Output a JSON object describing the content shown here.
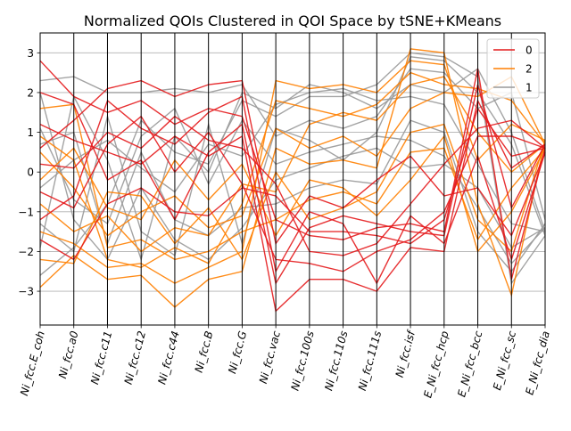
{
  "chart_data": {
    "type": "parallel-coordinates",
    "title": "Normalized QOIs Clustered in QOI Space by tSNE+KMeans",
    "axes": [
      "Ni_fcc.E_coh",
      "Ni_fcc.a0",
      "Ni_fcc.c11",
      "Ni_fcc.c12",
      "Ni_fcc.c44",
      "Ni_fcc.B",
      "Ni_fcc.G",
      "Ni_fcc.vac",
      "Ni_fcc.100s",
      "Ni_fcc.110s",
      "Ni_fcc.111s",
      "Ni_fcc.isf",
      "E_Ni_fcc_hcp",
      "E_Ni_fcc_bcc",
      "E_Ni_fcc_sc",
      "E_Ni_fcc_dia"
    ],
    "ylim": [
      -3.85,
      3.5
    ],
    "yticks": [
      -3,
      -2,
      -1,
      0,
      1,
      2,
      3
    ],
    "grid": "horizontal",
    "legend_position": "top-right",
    "series": [
      {
        "name": "0",
        "color": "#e41a1c",
        "values": [
          [
            2.8,
            1.9,
            1.5,
            1.8,
            1.2,
            1.6,
            1.4,
            -1.2,
            -1.6,
            -1.7,
            -1.4,
            -1.3,
            -1.5,
            2.6,
            -2.7,
            0.6
          ],
          [
            1.2,
            0.8,
            0.5,
            0.2,
            0.9,
            0.4,
            0.9,
            -3.5,
            -2.7,
            -2.7,
            -3.0,
            -1.9,
            -2.0,
            1.8,
            0.1,
            0.7
          ],
          [
            -0.5,
            -0.9,
            0.7,
            1.4,
            0.0,
            1.0,
            -0.3,
            -2.2,
            -2.3,
            -2.5,
            -2.0,
            -1.7,
            -1.0,
            0.9,
            0.9,
            0.6
          ],
          [
            0.6,
            1.3,
            2.1,
            2.3,
            1.9,
            2.2,
            2.3,
            -1.8,
            -0.6,
            -0.9,
            -0.2,
            0.4,
            -0.6,
            -0.4,
            -1.6,
            0.5
          ],
          [
            -1.7,
            -2.2,
            -0.8,
            -0.4,
            -1.0,
            -1.1,
            -0.4,
            -0.6,
            -1.5,
            -1.5,
            -1.6,
            -1.8,
            -1.2,
            1.6,
            0.4,
            0.6
          ],
          [
            2.0,
            1.7,
            -0.2,
            0.3,
            -1.2,
            0.5,
            1.2,
            -2.8,
            -1.4,
            -1.1,
            -1.3,
            -1.5,
            -1.6,
            2.2,
            -0.9,
            0.7
          ],
          [
            0.2,
            0.1,
            1.0,
            0.6,
            1.4,
            0.8,
            0.6,
            -0.3,
            -2.0,
            -2.1,
            -1.8,
            -0.8,
            0.2,
            1.1,
            1.3,
            0.6
          ],
          [
            -1.2,
            -0.6,
            1.8,
            1.1,
            0.7,
            1.5,
            1.9,
            -2.5,
            -1.0,
            -1.3,
            -2.8,
            -1.1,
            -1.8,
            0.4,
            -2.2,
            0.5
          ]
        ]
      },
      {
        "name": "2",
        "color": "#ff7f00",
        "values": [
          [
            -2.9,
            -2.1,
            -2.7,
            -2.6,
            -3.4,
            -2.7,
            -2.5,
            0.6,
            0.2,
            0.3,
            0.1,
            3.1,
            3.0,
            -0.8,
            -3.1,
            0.8
          ],
          [
            -1.5,
            -1.8,
            -2.4,
            -2.3,
            -2.8,
            -2.4,
            -2.0,
            2.3,
            2.1,
            2.2,
            2.0,
            2.8,
            2.7,
            0.3,
            1.2,
            0.8
          ],
          [
            0.5,
            -0.4,
            -1.6,
            -1.0,
            -0.6,
            -1.4,
            -1.1,
            1.1,
            0.6,
            0.9,
            0.4,
            1.6,
            2.0,
            1.9,
            2.4,
            0.7
          ],
          [
            1.6,
            1.7,
            -1.9,
            -1.7,
            -2.2,
            -2.0,
            -1.5,
            -1.2,
            -0.7,
            -0.5,
            -0.8,
            0.5,
            0.6,
            -1.7,
            -0.4,
            0.6
          ],
          [
            -0.8,
            -1.5,
            -1.1,
            -2.0,
            -1.4,
            -1.6,
            -0.3,
            -0.5,
            1.2,
            1.5,
            1.3,
            2.2,
            2.4,
            1.0,
            0.0,
            0.7
          ],
          [
            -2.2,
            -2.3,
            -0.5,
            -0.6,
            -1.8,
            -0.9,
            -2.2,
            0.0,
            -1.2,
            -0.9,
            -0.5,
            1.0,
            1.2,
            -1.2,
            -2.0,
            0.8
          ],
          [
            0.9,
            0.3,
            -2.2,
            -2.4,
            -1.9,
            -2.3,
            -0.8,
            1.8,
            1.6,
            1.4,
            1.7,
            2.5,
            2.2,
            2.1,
            1.8,
            0.7
          ],
          [
            -0.2,
            0.6,
            -0.9,
            -1.2,
            0.3,
            -0.7,
            0.2,
            -1.6,
            -0.2,
            -0.4,
            -1.1,
            -0.2,
            0.9,
            -2.0,
            -1.0,
            0.6
          ]
        ]
      },
      {
        "name": "1",
        "color": "#999999",
        "values": [
          [
            -2.6,
            -1.9,
            -0.8,
            1.3,
            0.5,
            0.2,
            1.8,
            1.4,
            1.9,
            1.9,
            2.2,
            3.0,
            2.9,
            2.4,
            -2.8,
            -1.6
          ],
          [
            2.3,
            2.4,
            2.0,
            2.0,
            2.1,
            2.0,
            2.2,
            0.9,
            1.3,
            1.1,
            1.4,
            2.6,
            2.5,
            1.6,
            2.0,
            -1.2
          ],
          [
            -0.4,
            0.3,
            0.8,
            0.1,
            -0.5,
            0.7,
            0.4,
            1.7,
            2.0,
            2.1,
            1.8,
            1.9,
            1.7,
            0.2,
            -1.3,
            -1.5
          ],
          [
            1.1,
            -0.7,
            -1.3,
            0.9,
            1.6,
            -0.3,
            1.3,
            0.2,
            0.5,
            0.7,
            0.9,
            0.8,
            0.4,
            -0.9,
            -2.3,
            -1.4
          ],
          [
            -1.3,
            -2.0,
            1.4,
            -1.5,
            -2.1,
            1.2,
            -1.8,
            1.1,
            0.8,
            0.3,
            1.0,
            2.9,
            2.8,
            2.0,
            0.7,
            -1.6
          ],
          [
            0.7,
            1.0,
            -1.8,
            0.5,
            -1.2,
            -1.6,
            -0.9,
            -0.8,
            -0.4,
            -0.2,
            -0.3,
            1.3,
            1.0,
            -1.5,
            -2.5,
            -1.3
          ],
          [
            -1.9,
            1.9,
            0.3,
            -2.2,
            0.9,
            0.0,
            2.0,
            1.6,
            2.2,
            2.0,
            1.6,
            2.2,
            2.0,
            2.6,
            1.0,
            -1.5
          ],
          [
            2.0,
            -1.2,
            -2.2,
            -0.4,
            -1.7,
            -2.2,
            -1.4,
            -0.2,
            0.1,
            0.4,
            0.6,
            0.1,
            0.2,
            -0.4,
            -1.9,
            -1.4
          ]
        ]
      }
    ]
  }
}
